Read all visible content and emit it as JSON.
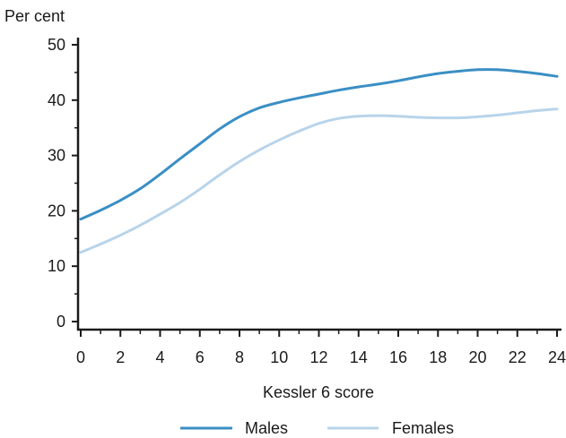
{
  "chart_data": {
    "type": "line",
    "ylabel": "Per cent",
    "xlabel": "Kessler 6 score",
    "xlim": [
      0,
      24
    ],
    "ylim": [
      0,
      50
    ],
    "x_ticks": [
      0,
      2,
      4,
      6,
      8,
      10,
      12,
      14,
      16,
      18,
      20,
      22,
      24
    ],
    "y_ticks": [
      0,
      10,
      20,
      30,
      40,
      50
    ],
    "grid": false,
    "legend_position": "bottom",
    "x": [
      0,
      1,
      2,
      3,
      4,
      5,
      6,
      7,
      8,
      9,
      10,
      11,
      12,
      13,
      14,
      15,
      16,
      17,
      18,
      19,
      20,
      21,
      22,
      23,
      24
    ],
    "series": [
      {
        "name": "Males",
        "color": "#3a8fc4",
        "values": [
          18.5,
          20.1,
          21.9,
          24.0,
          26.6,
          29.4,
          32.1,
          34.8,
          37.0,
          38.6,
          39.6,
          40.4,
          41.1,
          41.8,
          42.4,
          42.9,
          43.5,
          44.2,
          44.8,
          45.2,
          45.5,
          45.5,
          45.2,
          44.8,
          44.3
        ]
      },
      {
        "name": "Females",
        "color": "#b8d4ea",
        "values": [
          12.5,
          14.0,
          15.6,
          17.4,
          19.4,
          21.5,
          23.9,
          26.5,
          28.9,
          31.0,
          32.8,
          34.4,
          35.8,
          36.7,
          37.1,
          37.2,
          37.1,
          36.9,
          36.8,
          36.8,
          37.0,
          37.3,
          37.7,
          38.1,
          38.4
        ]
      }
    ]
  }
}
